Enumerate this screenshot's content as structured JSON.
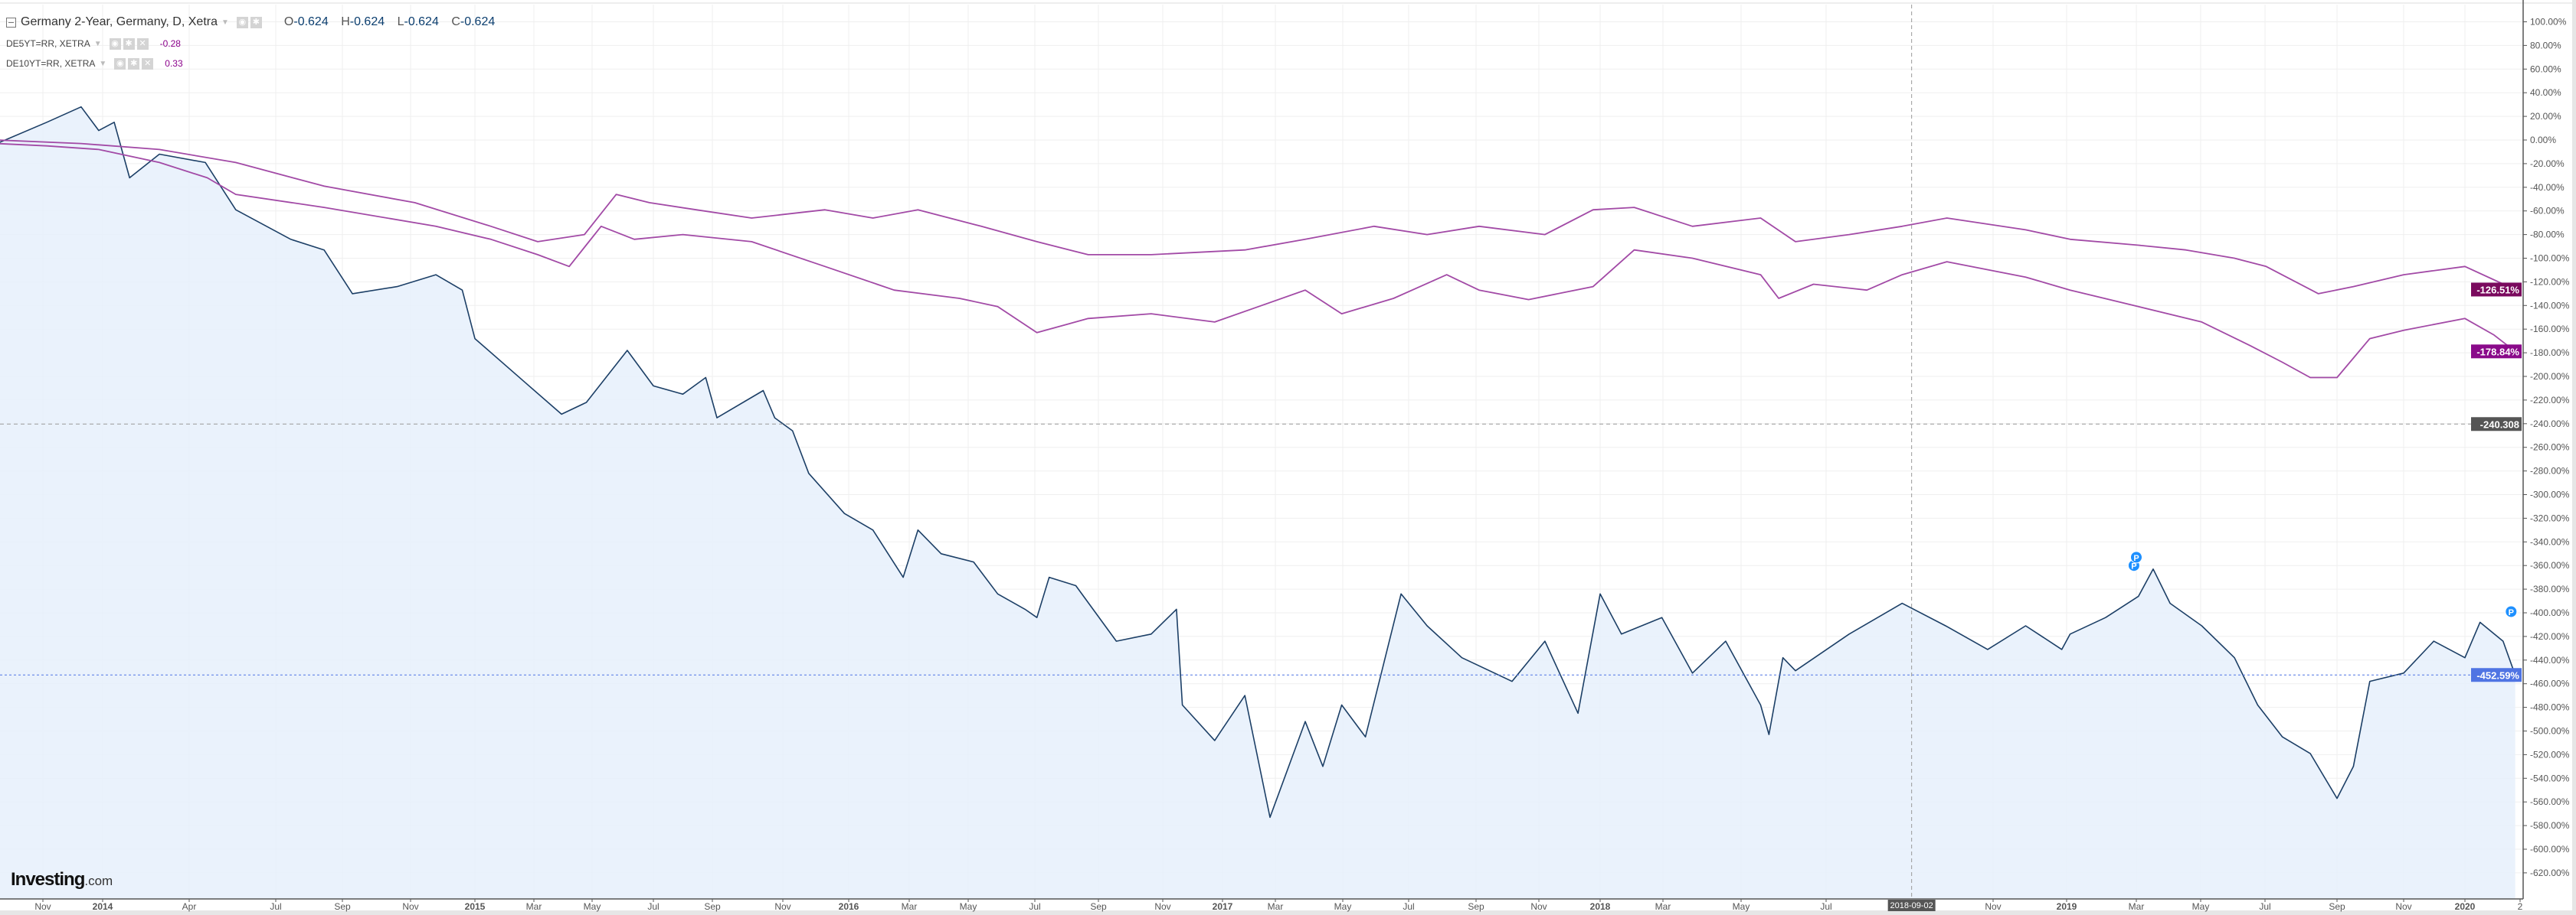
{
  "legend": {
    "main": {
      "title": "Germany 2-Year, Germany, D, Xetra",
      "o_label": "O",
      "o": "-0.624",
      "h_label": "H",
      "h": "-0.624",
      "l_label": "L",
      "l": "-0.624",
      "c_label": "C",
      "c": "-0.624"
    },
    "studies": [
      {
        "name": "DE5YT=RR, XETRA",
        "value": "-0.28"
      },
      {
        "name": "DE10YT=RR, XETRA",
        "value": "0.33"
      }
    ]
  },
  "logo": {
    "brand": "Investing",
    "suffix": ".com"
  },
  "icons": {
    "collapse": "minus-square-icon",
    "eye": "eye-icon",
    "settings": "gear-icon",
    "remove": "close-icon",
    "dropdown": "caret-down-icon",
    "marker": "P"
  },
  "chart_data": {
    "type": "line",
    "title": "",
    "y_axis": {
      "min": -620,
      "max": 100,
      "step": 20,
      "unit": "%",
      "position": "right",
      "ticks": [
        "100.00%",
        "80.00%",
        "60.00%",
        "40.00%",
        "20.00%",
        "0.00%",
        "-20.00%",
        "-40.00%",
        "-60.00%",
        "-80.00%",
        "-100.00%",
        "-120.00%",
        "-140.00%",
        "-160.00%",
        "-180.00%",
        "-200.00%",
        "-220.00%",
        "-240.00%",
        "-260.00%",
        "-280.00%",
        "-300.00%",
        "-320.00%",
        "-340.00%",
        "-360.00%",
        "-380.00%",
        "-400.00%",
        "-420.00%",
        "-440.00%",
        "-460.00%",
        "-480.00%",
        "-500.00%",
        "-520.00%",
        "-540.00%",
        "-560.00%",
        "-580.00%",
        "-600.00%",
        "-620.00%"
      ]
    },
    "x_axis": {
      "ticks": [
        {
          "label": "Nov",
          "date": "2013-11-01"
        },
        {
          "label": "2014",
          "date": "2014-01-01"
        },
        {
          "label": "Apr",
          "date": "2014-04-01"
        },
        {
          "label": "Jul",
          "date": "2014-07-01"
        },
        {
          "label": "Sep",
          "date": "2014-09-01"
        },
        {
          "label": "Nov",
          "date": "2014-11-01"
        },
        {
          "label": "2015",
          "date": "2015-01-01"
        },
        {
          "label": "Mar",
          "date": "2015-03-01"
        },
        {
          "label": "May",
          "date": "2015-05-01"
        },
        {
          "label": "Jul",
          "date": "2015-07-01"
        },
        {
          "label": "Sep",
          "date": "2015-09-01"
        },
        {
          "label": "Nov",
          "date": "2015-11-01"
        },
        {
          "label": "2016",
          "date": "2016-01-01"
        },
        {
          "label": "Mar",
          "date": "2016-03-01"
        },
        {
          "label": "May",
          "date": "2016-05-01"
        },
        {
          "label": "Jul",
          "date": "2016-07-01"
        },
        {
          "label": "Sep",
          "date": "2016-09-01"
        },
        {
          "label": "Nov",
          "date": "2016-11-01"
        },
        {
          "label": "2017",
          "date": "2017-01-01"
        },
        {
          "label": "Mar",
          "date": "2017-03-01"
        },
        {
          "label": "May",
          "date": "2017-05-01"
        },
        {
          "label": "Jul",
          "date": "2017-07-01"
        },
        {
          "label": "Sep",
          "date": "2017-09-01"
        },
        {
          "label": "Nov",
          "date": "2017-11-01"
        },
        {
          "label": "2018",
          "date": "2018-01-01"
        },
        {
          "label": "Mar",
          "date": "2018-03-01"
        },
        {
          "label": "May",
          "date": "2018-05-01"
        },
        {
          "label": "Jul",
          "date": "2018-07-01"
        },
        {
          "label": "Nov",
          "date": "2018-11-01"
        },
        {
          "label": "2019",
          "date": "2019-01-01"
        },
        {
          "label": "Mar",
          "date": "2019-03-01"
        },
        {
          "label": "May",
          "date": "2019-05-01"
        },
        {
          "label": "Jul",
          "date": "2019-07-01"
        },
        {
          "label": "Sep",
          "date": "2019-09-01"
        },
        {
          "label": "Nov",
          "date": "2019-11-01"
        },
        {
          "label": "2020",
          "date": "2020-01-01"
        },
        {
          "label": "2"
        }
      ]
    },
    "grid": true,
    "crosshair": {
      "date": "2018-09-02",
      "date_label": "2018-09-02",
      "value": -240.308,
      "value_label": "-240.308"
    },
    "series": [
      {
        "name": "Germany 2-Year, Germany, D, Xetra",
        "color": "#1c3f66",
        "fill": "#e6f0fb",
        "last_label": "-452.59%",
        "label_color": "#4f74e3",
        "points": [
          [
            "2013-09-15",
            -3
          ],
          [
            "2013-11-05",
            15
          ],
          [
            "2013-12-10",
            28
          ],
          [
            "2013-12-28",
            8
          ],
          [
            "2014-01-13",
            15
          ],
          [
            "2014-01-29",
            -32
          ],
          [
            "2014-03-01",
            -12
          ],
          [
            "2014-04-18",
            -19
          ],
          [
            "2014-05-20",
            -59
          ],
          [
            "2014-07-15",
            -84
          ],
          [
            "2014-08-15",
            -93
          ],
          [
            "2014-09-10",
            -130
          ],
          [
            "2014-10-20",
            -124
          ],
          [
            "2014-11-25",
            -114
          ],
          [
            "2014-12-20",
            -127
          ],
          [
            "2015-01-01",
            -168
          ],
          [
            "2015-02-20",
            -205
          ],
          [
            "2015-03-30",
            -232
          ],
          [
            "2015-04-25",
            -222
          ],
          [
            "2015-06-05",
            -178
          ],
          [
            "2015-07-01",
            -208
          ],
          [
            "2015-08-01",
            -215
          ],
          [
            "2015-08-25",
            -201
          ],
          [
            "2015-09-05",
            -235
          ],
          [
            "2015-10-15",
            -212
          ],
          [
            "2015-10-25",
            -235
          ],
          [
            "2015-11-10",
            -246
          ],
          [
            "2015-11-25",
            -282
          ],
          [
            "2015-12-28",
            -316
          ],
          [
            "2016-01-25",
            -330
          ],
          [
            "2016-02-24",
            -370
          ],
          [
            "2016-03-10",
            -330
          ],
          [
            "2016-04-03",
            -350
          ],
          [
            "2016-05-06",
            -357
          ],
          [
            "2016-05-28",
            -384
          ],
          [
            "2016-06-22",
            -397
          ],
          [
            "2016-07-03",
            -404
          ],
          [
            "2016-07-15",
            -370
          ],
          [
            "2016-08-10",
            -377
          ],
          [
            "2016-09-18",
            -424
          ],
          [
            "2016-10-21",
            -418
          ],
          [
            "2016-11-15",
            -397
          ],
          [
            "2016-11-21",
            -478
          ],
          [
            "2016-12-24",
            -508
          ],
          [
            "2017-01-26",
            -470
          ],
          [
            "2017-02-23",
            -573
          ],
          [
            "2017-03-28",
            -492
          ],
          [
            "2017-04-13",
            -530
          ],
          [
            "2017-04-30",
            -478
          ],
          [
            "2017-05-22",
            -505
          ],
          [
            "2017-06-24",
            -384
          ],
          [
            "2017-07-18",
            -411
          ],
          [
            "2017-08-19",
            -438
          ],
          [
            "2017-10-06",
            -458
          ],
          [
            "2017-11-07",
            -424
          ],
          [
            "2017-12-10",
            -485
          ],
          [
            "2018-01-01",
            -384
          ],
          [
            "2018-01-21",
            -418
          ],
          [
            "2018-02-28",
            -404
          ],
          [
            "2018-03-24",
            -451
          ],
          [
            "2018-04-19",
            -424
          ],
          [
            "2018-05-15",
            -478
          ],
          [
            "2018-05-21",
            -503
          ],
          [
            "2018-05-31",
            -438
          ],
          [
            "2018-06-09",
            -449
          ],
          [
            "2018-07-18",
            -418
          ],
          [
            "2018-08-26",
            -392
          ],
          [
            "2018-09-27",
            -411
          ],
          [
            "2018-10-28",
            -431
          ],
          [
            "2018-11-28",
            -411
          ],
          [
            "2018-12-28",
            -431
          ],
          [
            "2019-01-04",
            -418
          ],
          [
            "2019-02-03",
            -404
          ],
          [
            "2019-03-03",
            -386
          ],
          [
            "2019-03-17",
            -363
          ],
          [
            "2019-04-02",
            -392
          ],
          [
            "2019-05-02",
            -411
          ],
          [
            "2019-06-02",
            -438
          ],
          [
            "2019-06-24",
            -478
          ],
          [
            "2019-07-16",
            -505
          ],
          [
            "2019-08-09",
            -519
          ],
          [
            "2019-09-01",
            -557
          ],
          [
            "2019-09-16",
            -530
          ],
          [
            "2019-10-01",
            -458
          ],
          [
            "2019-11-01",
            -451
          ],
          [
            "2019-12-01",
            -424
          ],
          [
            "2020-01-01",
            -438
          ],
          [
            "2020-01-16",
            -408
          ],
          [
            "2020-02-08",
            -424
          ],
          [
            "2020-02-20",
            -452.59
          ]
        ]
      },
      {
        "name": "DE10YT=RR, XETRA",
        "color": "#a24aa6",
        "last_label": "-126.51%",
        "label_color": "#7a0a5e",
        "points": [
          [
            "2013-09-15",
            0
          ],
          [
            "2013-12-10",
            -3
          ],
          [
            "2014-03-01",
            -8
          ],
          [
            "2014-05-20",
            -19
          ],
          [
            "2014-08-15",
            -39
          ],
          [
            "2014-11-05",
            -53
          ],
          [
            "2015-01-17",
            -73
          ],
          [
            "2015-03-05",
            -86
          ],
          [
            "2015-04-23",
            -80
          ],
          [
            "2015-05-25",
            -46
          ],
          [
            "2015-06-27",
            -53
          ],
          [
            "2015-08-15",
            -59
          ],
          [
            "2015-10-05",
            -66
          ],
          [
            "2015-12-10",
            -59
          ],
          [
            "2016-01-25",
            -66
          ],
          [
            "2016-03-10",
            -59
          ],
          [
            "2016-05-13",
            -73
          ],
          [
            "2016-07-03",
            -86
          ],
          [
            "2016-08-22",
            -97
          ],
          [
            "2016-10-21",
            -97
          ],
          [
            "2017-01-26",
            -93
          ],
          [
            "2017-03-28",
            -84
          ],
          [
            "2017-05-30",
            -73
          ],
          [
            "2017-07-18",
            -80
          ],
          [
            "2017-09-04",
            -73
          ],
          [
            "2017-11-07",
            -80
          ],
          [
            "2017-12-25",
            -59
          ],
          [
            "2018-02-02",
            -57
          ],
          [
            "2018-03-24",
            -73
          ],
          [
            "2018-05-15",
            -66
          ],
          [
            "2018-06-09",
            -86
          ],
          [
            "2018-07-18",
            -80
          ],
          [
            "2018-08-26",
            -73
          ],
          [
            "2018-09-28",
            -66
          ],
          [
            "2018-11-28",
            -76
          ],
          [
            "2019-01-04",
            -84
          ],
          [
            "2019-03-03",
            -89
          ],
          [
            "2019-04-17",
            -93
          ],
          [
            "2019-06-02",
            -100
          ],
          [
            "2019-07-02",
            -107
          ],
          [
            "2019-08-16",
            -130
          ],
          [
            "2019-09-16",
            -124
          ],
          [
            "2019-11-01",
            -114
          ],
          [
            "2020-01-01",
            -107
          ],
          [
            "2020-02-20",
            -126.51
          ]
        ]
      },
      {
        "name": "DE5YT=RR, XETRA",
        "color": "#a24aa6",
        "last_label": "-178.84%",
        "label_color": "#8a0a8a",
        "points": [
          [
            "2013-09-15",
            -3
          ],
          [
            "2013-11-05",
            -5
          ],
          [
            "2013-12-28",
            -8
          ],
          [
            "2014-03-01",
            -19
          ],
          [
            "2014-04-20",
            -32
          ],
          [
            "2014-05-20",
            -46
          ],
          [
            "2014-08-15",
            -57
          ],
          [
            "2014-11-25",
            -73
          ],
          [
            "2015-01-17",
            -84
          ],
          [
            "2015-03-05",
            -97
          ],
          [
            "2015-04-07",
            -107
          ],
          [
            "2015-05-10",
            -73
          ],
          [
            "2015-06-12",
            -84
          ],
          [
            "2015-08-01",
            -80
          ],
          [
            "2015-10-05",
            -86
          ],
          [
            "2015-12-10",
            -107
          ],
          [
            "2016-02-15",
            -127
          ],
          [
            "2016-04-22",
            -134
          ],
          [
            "2016-05-28",
            -141
          ],
          [
            "2016-07-03",
            -163
          ],
          [
            "2016-08-22",
            -151
          ],
          [
            "2016-10-21",
            -147
          ],
          [
            "2016-12-24",
            -154
          ],
          [
            "2017-02-10",
            -141
          ],
          [
            "2017-03-28",
            -127
          ],
          [
            "2017-04-30",
            -147
          ],
          [
            "2017-06-17",
            -134
          ],
          [
            "2017-08-05",
            -114
          ],
          [
            "2017-09-04",
            -127
          ],
          [
            "2017-10-22",
            -135
          ],
          [
            "2017-12-25",
            -124
          ],
          [
            "2018-02-02",
            -93
          ],
          [
            "2018-03-24",
            -100
          ],
          [
            "2018-05-15",
            -114
          ],
          [
            "2018-05-28",
            -134
          ],
          [
            "2018-06-22",
            -122
          ],
          [
            "2018-07-31",
            -127
          ],
          [
            "2018-08-26",
            -114
          ],
          [
            "2018-09-28",
            -103
          ],
          [
            "2018-11-28",
            -116
          ],
          [
            "2019-01-04",
            -127
          ],
          [
            "2019-03-03",
            -141
          ],
          [
            "2019-05-02",
            -154
          ],
          [
            "2019-06-17",
            -174
          ],
          [
            "2019-07-16",
            -188
          ],
          [
            "2019-08-09",
            -201
          ],
          [
            "2019-09-01",
            -201
          ],
          [
            "2019-10-01",
            -168
          ],
          [
            "2019-11-01",
            -161
          ],
          [
            "2020-01-01",
            -151
          ],
          [
            "2020-01-30",
            -165
          ],
          [
            "2020-02-20",
            -178.84
          ]
        ]
      }
    ],
    "markers": [
      {
        "label": "P",
        "date": "2019-02-27",
        "value": -360
      },
      {
        "label": "P",
        "date": "2019-03-01",
        "value": -353
      },
      {
        "label": "P",
        "date": "2020-02-16",
        "value": -399
      }
    ]
  }
}
